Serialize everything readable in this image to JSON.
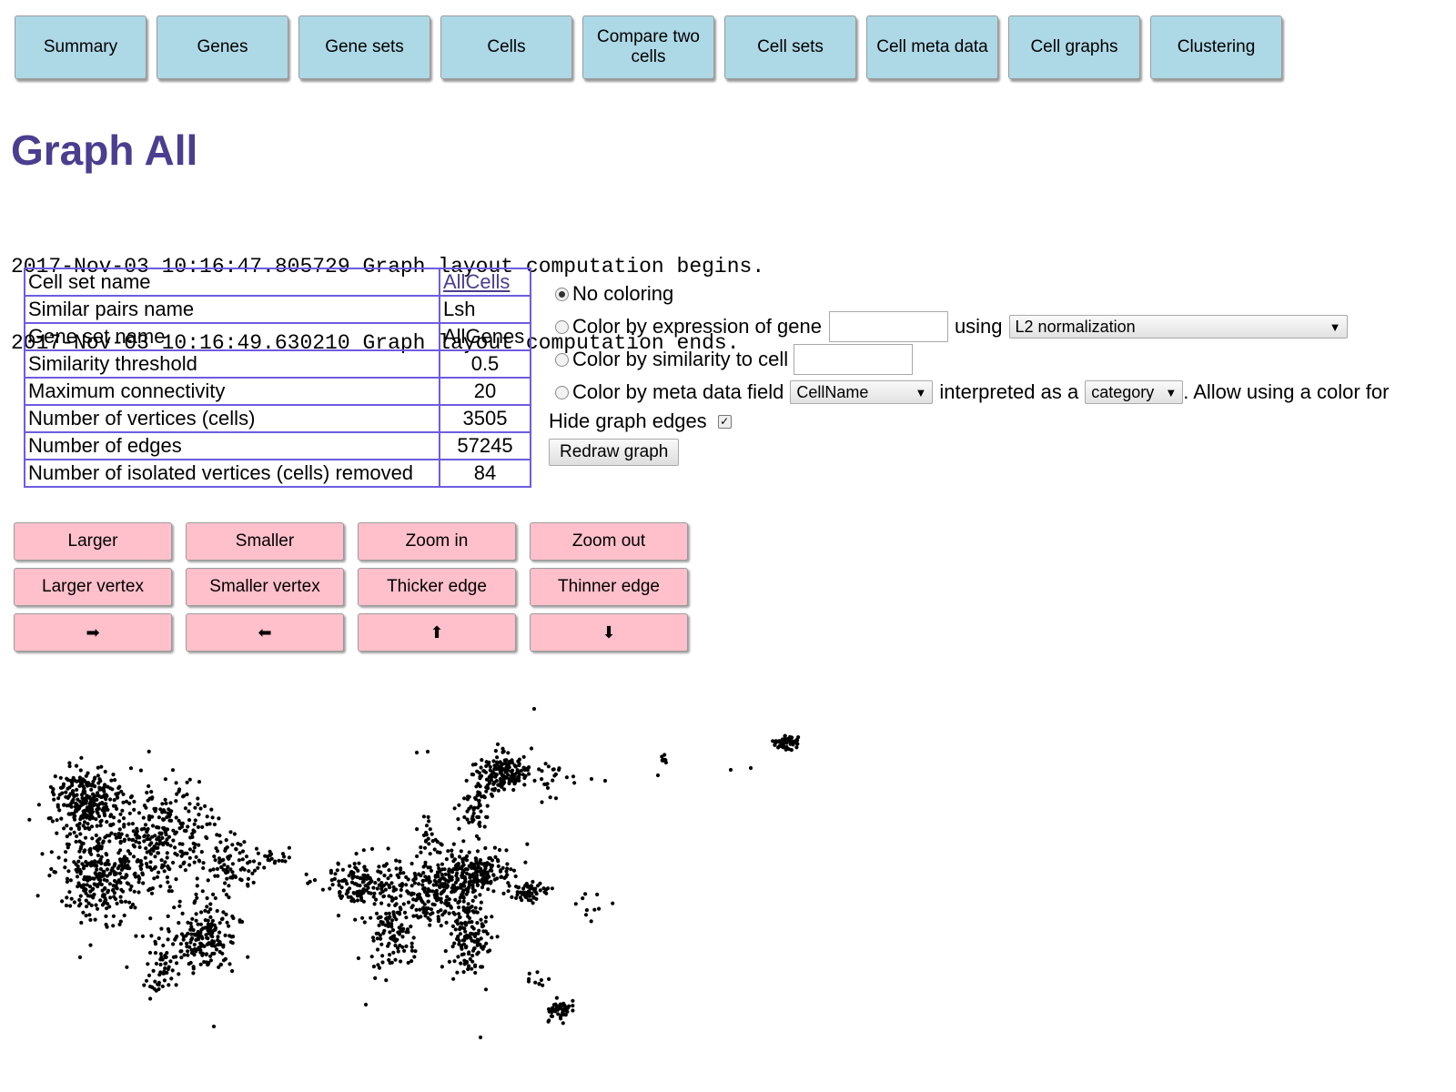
{
  "nav": [
    {
      "name": "nav-summary",
      "label": "Summary"
    },
    {
      "name": "nav-genes",
      "label": "Genes"
    },
    {
      "name": "nav-gene-sets",
      "label": "Gene sets"
    },
    {
      "name": "nav-cells",
      "label": "Cells"
    },
    {
      "name": "nav-compare-two-cells",
      "label": "Compare two cells"
    },
    {
      "name": "nav-cell-sets",
      "label": "Cell sets"
    },
    {
      "name": "nav-cell-meta-data",
      "label": "Cell meta data"
    },
    {
      "name": "nav-cell-graphs",
      "label": "Cell graphs"
    },
    {
      "name": "nav-clustering",
      "label": "Clustering"
    }
  ],
  "page_title": "Graph All",
  "log": [
    "2017-Nov-03 10:16:47.805729 Graph layout computation begins.",
    "2017-Nov-03 10:16:49.630210 Graph layout computation ends."
  ],
  "info": {
    "cell_set_name": {
      "label": "Cell set name",
      "value": "AllCells"
    },
    "similar_pairs": {
      "label": "Similar pairs name",
      "value": "Lsh"
    },
    "gene_set": {
      "label": "Gene set name",
      "value": "AllGenes"
    },
    "threshold": {
      "label": "Similarity threshold",
      "value": "0.5"
    },
    "max_conn": {
      "label": "Maximum connectivity",
      "value": "20"
    },
    "vertices": {
      "label": "Number of vertices (cells)",
      "value": "3505"
    },
    "edges": {
      "label": "Number of edges",
      "value": "57245"
    },
    "isolated": {
      "label": "Number of isolated vertices (cells) removed",
      "value": "84"
    }
  },
  "coloring": {
    "no_coloring": "No coloring",
    "by_gene": "Color by expression of gene",
    "using": "using",
    "normalization": "L2 normalization",
    "by_similarity": "Color by similarity to cell",
    "by_meta": "Color by meta data field",
    "meta_field": "CellName",
    "interpreted": "interpreted as a",
    "interpretation": "category",
    "allow_text": ". Allow using a color for",
    "hide_edges": "Hide graph edges",
    "redraw": "Redraw graph"
  },
  "controls": {
    "larger": "Larger",
    "smaller": "Smaller",
    "zoom_in": "Zoom in",
    "zoom_out": "Zoom out",
    "larger_vertex": "Larger vertex",
    "smaller_vertex": "Smaller vertex",
    "thicker_edge": "Thicker edge",
    "thinner_edge": "Thinner edge",
    "right": "➡",
    "left": "⬅",
    "up": "⬆",
    "down": "⬇"
  },
  "colors": {
    "nav_button": "#add8e6",
    "control_button": "#ffc0cb",
    "title": "#4b3d8f",
    "table_border": "#6d5ce0",
    "vertex": "#000000"
  }
}
